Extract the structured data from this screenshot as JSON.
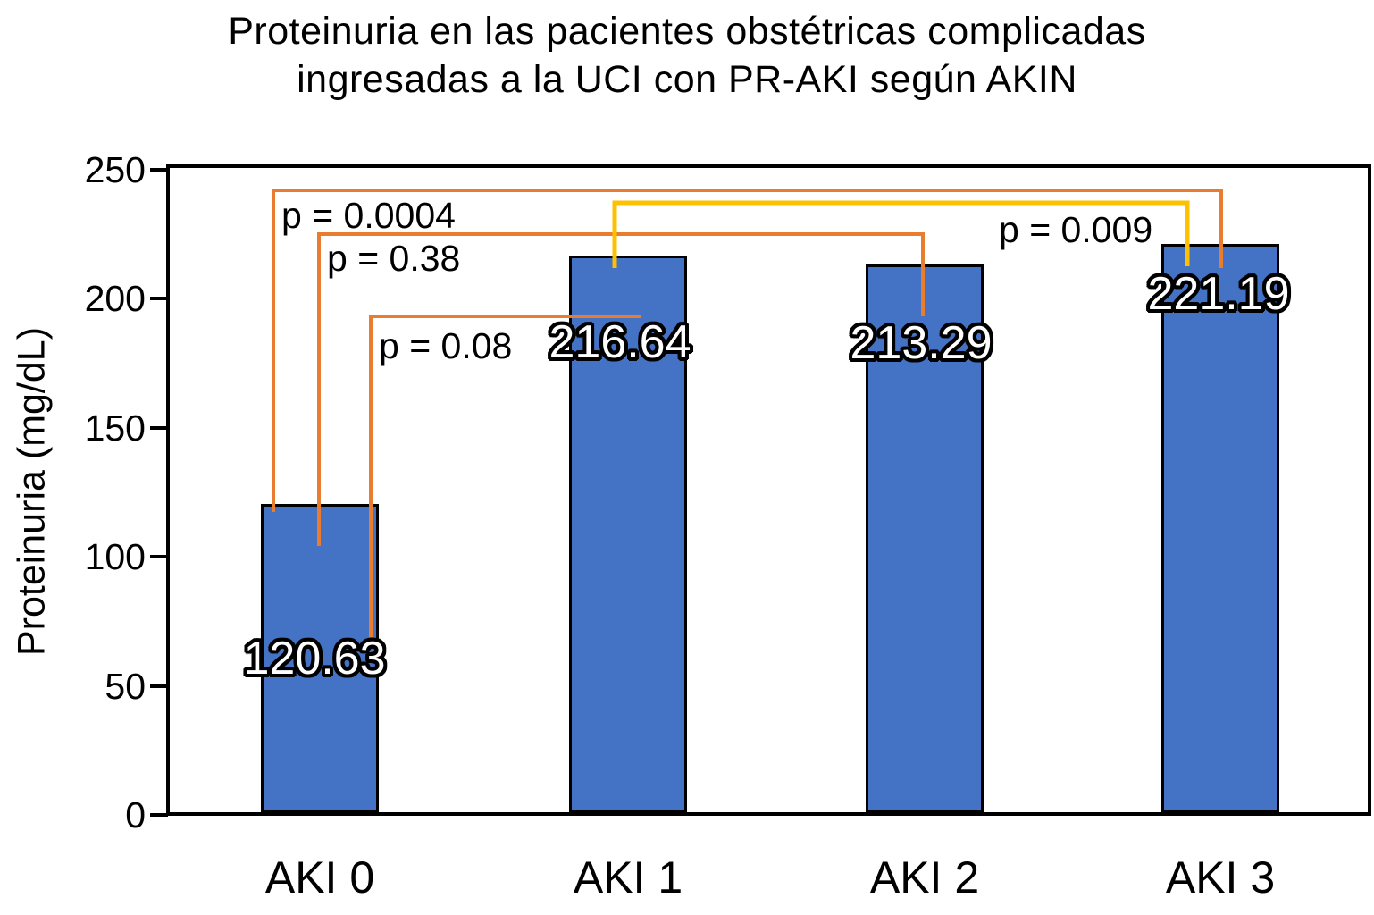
{
  "title": {
    "line1": "Proteinuria en las pacientes obstétricas complicadas",
    "line2": "ingresadas a la UCI con PR-AKI según AKIN"
  },
  "chart_data": {
    "type": "bar",
    "title": "Proteinuria en las pacientes obstétricas complicadas ingresadas a la UCI con PR-AKI según AKIN",
    "categories": [
      "AKI 0",
      "AKI 1",
      "AKI 2",
      "AKI 3"
    ],
    "values": [
      120.63,
      216.64,
      213.29,
      221.19
    ],
    "value_labels": [
      "120.63",
      "216.64",
      "213.29",
      "221.19"
    ],
    "xlabel": "",
    "ylabel": "Proteinuria (mg/dL)",
    "ylim": [
      0,
      250
    ],
    "yticks": [
      0,
      50,
      100,
      150,
      200,
      250
    ],
    "ytick_labels": [
      "0",
      "50",
      "100",
      "150",
      "200",
      "250"
    ],
    "grid": false,
    "legend": false,
    "colors": {
      "bar_fill": "#4472C4",
      "bar_border": "#000000",
      "bracket_orange": "#E97D2F",
      "bracket_yellow": "#FFC000",
      "value_label_fill": "#FFFFFF",
      "value_label_outline": "#000000",
      "text": "#000000",
      "background": "#FFFFFF"
    },
    "annotations": [
      {
        "label": "p = 0.0004",
        "p_value": 0.0004,
        "from": "AKI 0",
        "to": "AKI 3",
        "color": "#E97D2F"
      },
      {
        "label": "p = 0.38",
        "p_value": 0.38,
        "from": "AKI 0",
        "to": "AKI 2",
        "color": "#E97D2F"
      },
      {
        "label": "p = 0.08",
        "p_value": 0.08,
        "from": "AKI 0",
        "to": "AKI 1",
        "color": "#E97D2F"
      },
      {
        "label": "p = 0.009",
        "p_value": 0.009,
        "from": "AKI 1",
        "to": "AKI 3",
        "color": "#FFC000"
      }
    ]
  }
}
